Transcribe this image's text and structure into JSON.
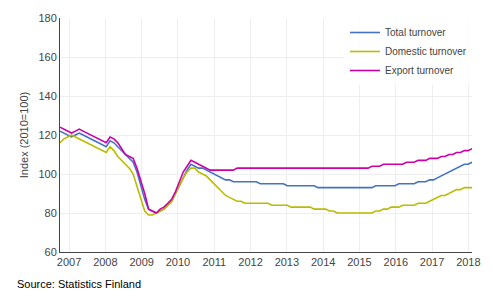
{
  "chart_data": {
    "type": "line",
    "ylabel": "Index (2010=100)",
    "annotations": [
      "Source: Statistics Finland"
    ],
    "x": [
      2006.75,
      2006.8561,
      2006.9621,
      2007.0682,
      2007.1743,
      2007.2804,
      2007.3864,
      2007.4925,
      2007.5986,
      2007.7047,
      2007.8107,
      2007.9168,
      2008.0229,
      2008.129,
      2008.235,
      2008.3411,
      2008.4472,
      2008.5533,
      2008.6593,
      2008.7654,
      2008.8715,
      2008.9776,
      2009.0836,
      2009.1897,
      2009.2958,
      2009.4019,
      2009.5079,
      2009.614,
      2009.7201,
      2009.8262,
      2009.9322,
      2010.0383,
      2010.1444,
      2010.2505,
      2010.3565,
      2010.4626,
      2010.5687,
      2010.6748,
      2010.7808,
      2010.8869,
      2010.993,
      2011.0991,
      2011.2051,
      2011.3112,
      2011.4173,
      2011.5234,
      2011.6294,
      2011.7355,
      2011.8416,
      2011.9477,
      2012.0537,
      2012.1598,
      2012.2659,
      2012.372,
      2012.478,
      2012.5841,
      2012.6902,
      2012.7963,
      2012.9023,
      2013.0084,
      2013.1145,
      2013.2206,
      2013.3266,
      2013.4327,
      2013.5388,
      2013.6449,
      2013.7509,
      2013.857,
      2013.9631,
      2014.0692,
      2014.1752,
      2014.2813,
      2014.3874,
      2014.4935,
      2014.5995,
      2014.7056,
      2014.8117,
      2014.9178,
      2015.0238,
      2015.1299,
      2015.236,
      2015.3421,
      2015.4481,
      2015.5542,
      2015.6603,
      2015.7664,
      2015.8724,
      2015.9785,
      2016.0846,
      2016.1907,
      2016.2967,
      2016.4028,
      2016.5089,
      2016.615,
      2016.721,
      2016.8271,
      2016.9332,
      2017.0393,
      2017.1453,
      2017.2514,
      2017.3575,
      2017.4636,
      2017.5696,
      2017.6757,
      2017.7818,
      2017.8879,
      2017.9939,
      2018.1
    ],
    "series": [
      {
        "name": "Total turnover",
        "color": "#4472C4",
        "values": [
          122,
          121,
          120,
          119,
          120,
          121,
          120,
          119,
          118,
          117,
          116,
          115,
          114,
          117,
          116,
          114,
          112,
          110,
          108,
          106,
          101,
          94,
          87,
          82,
          81,
          80,
          81,
          82,
          84,
          86,
          90,
          94,
          98,
          102,
          105,
          104,
          103,
          103,
          102,
          101,
          100,
          99,
          98,
          97,
          97,
          96,
          96,
          96,
          96,
          96,
          96,
          96,
          95,
          95,
          95,
          95,
          95,
          95,
          95,
          94,
          94,
          94,
          94,
          94,
          94,
          94,
          94,
          93,
          93,
          93,
          93,
          93,
          93,
          93,
          93,
          93,
          93,
          93,
          93,
          93,
          93,
          93,
          94,
          94,
          94,
          94,
          94,
          94,
          95,
          95,
          95,
          95,
          95,
          96,
          96,
          96,
          97,
          97,
          98,
          99,
          100,
          101,
          102,
          103,
          104,
          105,
          105,
          106
        ]
      },
      {
        "name": "Domestic turnover",
        "color": "#BBBB00",
        "values": [
          116,
          118,
          119,
          120,
          119,
          118,
          117,
          116,
          115,
          114,
          113,
          112,
          111,
          114,
          112,
          109,
          107,
          105,
          103,
          100,
          94,
          87,
          81,
          79,
          79,
          80,
          81,
          82,
          84,
          86,
          90,
          94,
          98,
          101,
          103,
          103,
          101,
          100,
          99,
          97,
          95,
          93,
          91,
          89,
          88,
          87,
          86,
          86,
          85,
          85,
          85,
          85,
          85,
          85,
          85,
          84,
          84,
          84,
          84,
          84,
          83,
          83,
          83,
          83,
          83,
          83,
          82,
          82,
          82,
          82,
          81,
          81,
          80,
          80,
          80,
          80,
          80,
          80,
          80,
          80,
          80,
          80,
          81,
          81,
          82,
          82,
          83,
          83,
          83,
          84,
          84,
          84,
          84,
          85,
          85,
          85,
          86,
          87,
          88,
          89,
          89,
          90,
          91,
          92,
          92,
          93,
          93,
          93
        ]
      },
      {
        "name": "Export turnover",
        "color": "#CC00AA",
        "values": [
          124,
          123,
          122,
          121,
          122,
          123,
          122,
          121,
          120,
          119,
          118,
          117,
          116,
          119,
          118,
          116,
          113,
          110,
          109,
          108,
          103,
          97,
          90,
          82,
          81,
          80,
          82,
          83,
          85,
          87,
          91,
          96,
          101,
          104,
          107,
          106,
          105,
          104,
          103,
          102,
          102,
          102,
          102,
          102,
          102,
          102,
          103,
          103,
          103,
          103,
          103,
          103,
          103,
          103,
          103,
          103,
          103,
          103,
          103,
          103,
          103,
          103,
          103,
          103,
          103,
          103,
          103,
          103,
          103,
          103,
          103,
          103,
          103,
          103,
          103,
          103,
          103,
          103,
          103,
          103,
          103,
          104,
          104,
          104,
          105,
          105,
          105,
          105,
          105,
          105,
          106,
          106,
          106,
          107,
          107,
          107,
          108,
          108,
          108,
          109,
          109,
          110,
          110,
          111,
          111,
          112,
          112,
          113
        ]
      }
    ],
    "xlim": [
      2006.75,
      2018.1
    ],
    "xticks": [
      2007,
      2008,
      2009,
      2010,
      2011,
      2012,
      2013,
      2014,
      2015,
      2016,
      2017,
      2018
    ],
    "ylim": [
      60,
      180
    ],
    "yticks": [
      60,
      80,
      100,
      120,
      140,
      160,
      180
    ],
    "grid": true,
    "legend": "upper right"
  }
}
